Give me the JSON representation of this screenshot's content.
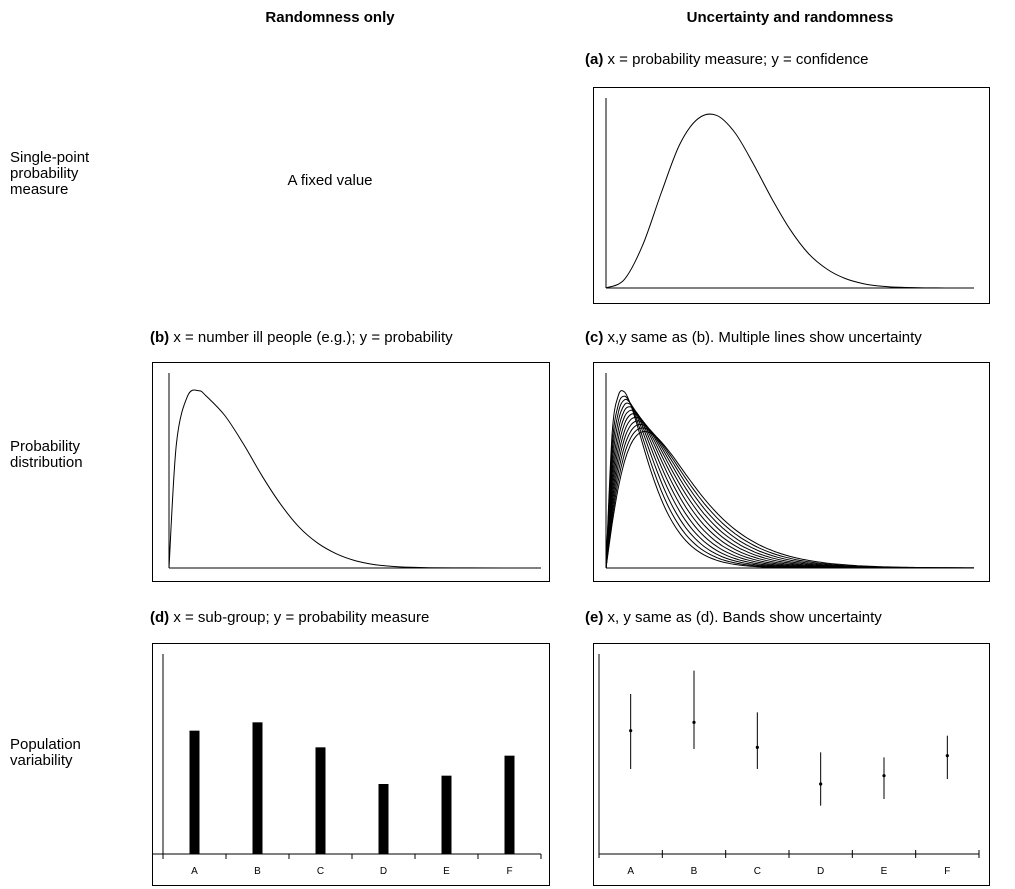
{
  "column_headers": {
    "randomness_only": "Randomness only",
    "uncertainty_and_randomness": "Uncertainty and randomness"
  },
  "row_labels": {
    "single_point": [
      "Single-point",
      "probability",
      "measure"
    ],
    "distribution": [
      "Probability",
      "distribution"
    ],
    "population": [
      "Population",
      "variability"
    ]
  },
  "fixed_value_text": "A fixed value",
  "captions": {
    "a": {
      "tag": "(a)",
      "text": " x = probability measure; y = confidence"
    },
    "b": {
      "tag": "(b)",
      "text": " x = number ill people (e.g.); y = probability"
    },
    "c": {
      "tag": "(c)",
      "text": " x,y same as (b). Multiple lines show uncertainty"
    },
    "d": {
      "tag": "(d)",
      "text": " x = sub-group; y = probability measure"
    },
    "e": {
      "tag": "(e)",
      "text": " x, y same as (d). Bands show uncertainty"
    }
  },
  "chart_data": [
    {
      "id": "a",
      "type": "line",
      "title": "",
      "xlabel": "",
      "ylabel": "",
      "description_curve": "single right-skewed density curve",
      "x": [
        0,
        0.05,
        0.1,
        0.15,
        0.2,
        0.25,
        0.3,
        0.35,
        0.4,
        0.45,
        0.5,
        0.55,
        0.6,
        0.65,
        0.7,
        0.75,
        0.8,
        0.85,
        0.9,
        0.95,
        1.0
      ],
      "y": [
        0,
        0.05,
        0.25,
        0.55,
        0.83,
        0.98,
        1.0,
        0.9,
        0.72,
        0.52,
        0.34,
        0.2,
        0.11,
        0.055,
        0.025,
        0.01,
        0.004,
        0.0015,
        0.0005,
        0.0001,
        0
      ],
      "ylim": [
        0,
        1.1
      ]
    },
    {
      "id": "b",
      "type": "line",
      "title": "",
      "xlabel": "",
      "ylabel": "",
      "x": [
        0,
        0.02,
        0.05,
        0.08,
        0.1,
        0.15,
        0.2,
        0.25,
        0.3,
        0.35,
        0.4,
        0.45,
        0.5,
        0.55,
        0.6,
        0.65,
        0.7,
        0.8,
        0.9,
        1.0
      ],
      "y": [
        0,
        0.7,
        0.97,
        1.0,
        0.97,
        0.86,
        0.7,
        0.52,
        0.36,
        0.23,
        0.14,
        0.08,
        0.042,
        0.02,
        0.009,
        0.004,
        0.0015,
        0.0003,
        5e-05,
        0
      ],
      "ylim": [
        0,
        1.1
      ]
    },
    {
      "id": "c",
      "type": "line",
      "title": "",
      "xlabel": "",
      "ylabel": "",
      "note": "family of gamma-like curves; peak heights vary",
      "peaks": [
        1.0,
        0.97,
        0.95,
        0.93,
        0.91,
        0.89,
        0.87,
        0.85,
        0.83,
        0.81,
        0.79,
        0.77
      ],
      "ylim": [
        0,
        1.1
      ]
    },
    {
      "id": "d",
      "type": "bar",
      "title": "",
      "categories": [
        "A",
        "B",
        "C",
        "D",
        "E",
        "F"
      ],
      "values": [
        0.74,
        0.79,
        0.64,
        0.42,
        0.47,
        0.59
      ],
      "ylim": [
        0,
        1.2
      ]
    },
    {
      "id": "e",
      "type": "scatter",
      "title": "",
      "categories": [
        "A",
        "B",
        "C",
        "D",
        "E",
        "F"
      ],
      "series": [
        {
          "values": [
            0.74,
            0.79,
            0.64,
            0.42,
            0.47,
            0.59
          ],
          "low": [
            0.51,
            0.63,
            0.51,
            0.29,
            0.33,
            0.45
          ],
          "high": [
            0.96,
            1.1,
            0.85,
            0.61,
            0.58,
            0.71
          ]
        }
      ],
      "ylim": [
        0,
        1.2
      ]
    }
  ]
}
